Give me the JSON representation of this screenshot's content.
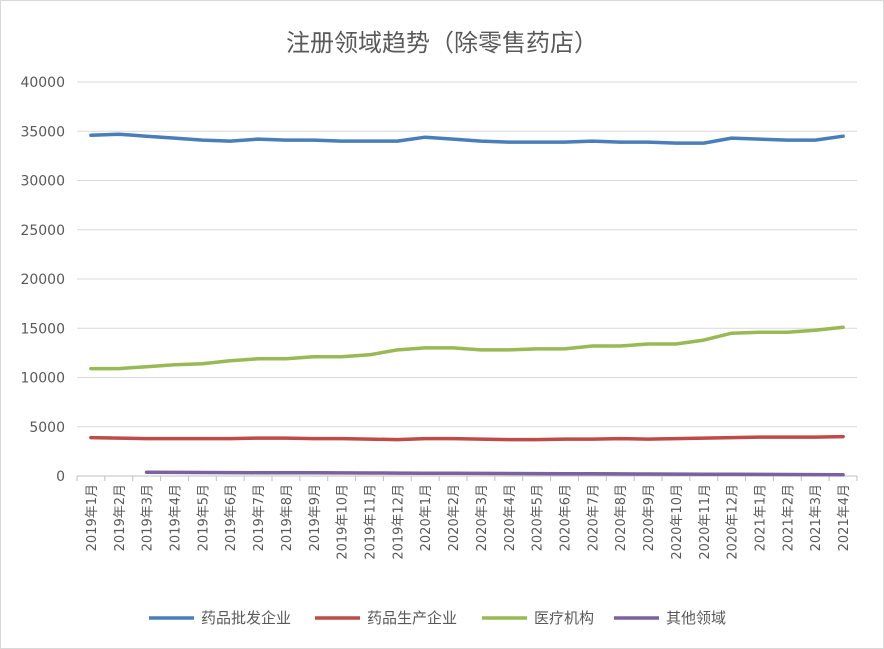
{
  "chart_data": {
    "type": "line",
    "title": "注册领域趋势（除零售药店）",
    "xlabel": "",
    "ylabel": "",
    "ylim": [
      0,
      40000
    ],
    "yticks": [
      0,
      5000,
      10000,
      15000,
      20000,
      25000,
      30000,
      35000,
      40000
    ],
    "grid": true,
    "legend_position": "bottom",
    "categories": [
      "2019年1月",
      "2019年2月",
      "2019年3月",
      "2019年4月",
      "2019年5月",
      "2019年6月",
      "2019年7月",
      "2019年8月",
      "2019年9月",
      "2019年10月",
      "2019年11月",
      "2019年12月",
      "2020年1月",
      "2020年2月",
      "2020年3月",
      "2020年4月",
      "2020年5月",
      "2020年6月",
      "2020年7月",
      "2020年8月",
      "2020年9月",
      "2020年10月",
      "2020年11月",
      "2020年12月",
      "2021年1月",
      "2021年2月",
      "2021年3月",
      "2021年4月"
    ],
    "series": [
      {
        "name": "药品批发企业",
        "color": "#4a7ebb",
        "values": [
          34600,
          34700,
          34500,
          34300,
          34100,
          34000,
          34200,
          34100,
          34100,
          34000,
          34000,
          34000,
          34400,
          34200,
          34000,
          33900,
          33900,
          33900,
          34000,
          33900,
          33900,
          33800,
          33800,
          34300,
          34200,
          34100,
          34100,
          34500
        ]
      },
      {
        "name": "药品生产企业",
        "color": "#be4b48",
        "values": [
          3900,
          3850,
          3800,
          3800,
          3800,
          3800,
          3850,
          3850,
          3800,
          3800,
          3750,
          3700,
          3800,
          3800,
          3750,
          3700,
          3700,
          3750,
          3750,
          3800,
          3750,
          3800,
          3850,
          3900,
          3950,
          3950,
          3950,
          4000
        ]
      },
      {
        "name": "医疗机构",
        "color": "#98b954",
        "values": [
          10900,
          10900,
          11100,
          11300,
          11400,
          11700,
          11900,
          11900,
          12100,
          12100,
          12300,
          12800,
          13000,
          13000,
          12800,
          12800,
          12900,
          12900,
          13200,
          13200,
          13400,
          13400,
          13800,
          14500,
          14600,
          14600,
          14800,
          15100
        ]
      },
      {
        "name": "其他领域",
        "color": "#7d60a0",
        "values": [
          null,
          null,
          380,
          370,
          360,
          350,
          340,
          330,
          320,
          310,
          300,
          290,
          280,
          270,
          260,
          250,
          240,
          230,
          220,
          210,
          200,
          190,
          180,
          170,
          160,
          150,
          140,
          130
        ]
      }
    ]
  }
}
